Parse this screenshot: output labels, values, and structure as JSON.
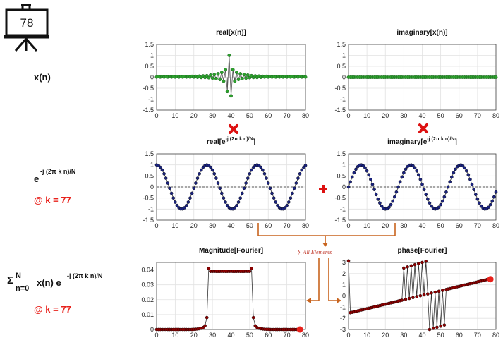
{
  "slide_number": "78",
  "labels": {
    "xn": "x(n)",
    "exp_base": "e",
    "exp_sup": "-j (2π k n)/N",
    "k_label": "@ k = 77",
    "sum_sigma": "Σ",
    "sum_upper": "N",
    "sum_lower": "n=0",
    "sum_body": "x(n) e",
    "sum_sup": "-j (2π k n)/N",
    "k_label2": "@ k = 77",
    "all_elements": "∑ All Elements"
  },
  "colors": {
    "green": "#2ca02c",
    "navy": "#1a237e",
    "darkred": "#8b0000",
    "orange": "#c8641e",
    "red": "#e8211b",
    "stem": "#555555"
  },
  "chart_data": [
    {
      "id": "real-xn",
      "type": "scatter",
      "title": "real[x(n)]",
      "style": "stem",
      "xlim": [
        0,
        80
      ],
      "ylim": [
        -1.5,
        1.5
      ],
      "xticks": [
        0,
        10,
        20,
        30,
        40,
        50,
        60,
        70,
        80
      ],
      "yticks": [
        1.5,
        1,
        0.5,
        0,
        -0.5,
        -1,
        -1.5
      ],
      "grid": true,
      "x": [
        0,
        1,
        2,
        3,
        4,
        5,
        6,
        7,
        8,
        9,
        10,
        11,
        12,
        13,
        14,
        15,
        16,
        17,
        18,
        19,
        20,
        21,
        22,
        23,
        24,
        25,
        26,
        27,
        28,
        29,
        30,
        31,
        32,
        33,
        34,
        35,
        36,
        37,
        38,
        39,
        40,
        41,
        42,
        43,
        44,
        45,
        46,
        47,
        48,
        49,
        50,
        51,
        52,
        53,
        54,
        55,
        56,
        57,
        58,
        59,
        60,
        61,
        62,
        63,
        64,
        65,
        66,
        67,
        68,
        69,
        70,
        71,
        72,
        73,
        74,
        75,
        76,
        77,
        78,
        79,
        80
      ],
      "y": [
        0.01,
        0.03,
        0.01,
        0.03,
        0.01,
        0.03,
        0.01,
        0.03,
        0.01,
        0.03,
        0.01,
        0.03,
        0.01,
        0.03,
        0.01,
        0.03,
        0.01,
        0.03,
        0.01,
        0.04,
        0.01,
        0.04,
        0.0,
        0.05,
        -0.01,
        0.06,
        -0.01,
        0.07,
        -0.02,
        0.1,
        -0.04,
        0.12,
        -0.06,
        0.16,
        -0.1,
        0.22,
        -0.18,
        0.35,
        -0.65,
        1.0,
        -0.85,
        0.35,
        -0.18,
        0.22,
        -0.1,
        0.16,
        -0.06,
        0.12,
        -0.04,
        0.1,
        -0.02,
        0.07,
        -0.01,
        0.06,
        -0.01,
        0.05,
        0.0,
        0.04,
        0.01,
        0.04,
        0.01,
        0.03,
        0.01,
        0.03,
        0.01,
        0.03,
        0.01,
        0.03,
        0.01,
        0.03,
        0.01,
        0.03,
        0.01,
        0.03,
        0.01,
        0.03,
        0.01,
        0.03,
        0.01,
        0.03,
        0.01
      ]
    },
    {
      "id": "imag-xn",
      "type": "scatter",
      "title": "imaginary[x(n)]",
      "style": "stem",
      "xlim": [
        0,
        80
      ],
      "ylim": [
        -1.5,
        1.5
      ],
      "xticks": [
        0,
        10,
        20,
        30,
        40,
        50,
        60,
        70,
        80
      ],
      "yticks": [
        1.5,
        1,
        0.5,
        0,
        -0.5,
        -1,
        -1.5
      ],
      "grid": true,
      "x": [
        0,
        1,
        2,
        3,
        4,
        5,
        6,
        7,
        8,
        9,
        10,
        11,
        12,
        13,
        14,
        15,
        16,
        17,
        18,
        19,
        20,
        21,
        22,
        23,
        24,
        25,
        26,
        27,
        28,
        29,
        30,
        31,
        32,
        33,
        34,
        35,
        36,
        37,
        38,
        39,
        40,
        41,
        42,
        43,
        44,
        45,
        46,
        47,
        48,
        49,
        50,
        51,
        52,
        53,
        54,
        55,
        56,
        57,
        58,
        59,
        60,
        61,
        62,
        63,
        64,
        65,
        66,
        67,
        68,
        69,
        70,
        71,
        72,
        73,
        74,
        75,
        76,
        77,
        78,
        79,
        80
      ],
      "y": [
        0,
        0,
        0,
        0,
        0,
        0,
        0,
        0,
        0,
        0,
        0,
        0,
        0,
        0,
        0,
        0,
        0,
        0,
        0,
        0,
        0,
        0,
        0,
        0,
        0,
        0,
        0,
        0,
        0,
        0,
        0,
        0,
        0,
        0,
        0,
        0,
        0,
        0,
        0,
        0,
        0,
        0,
        0,
        0,
        0,
        0,
        0,
        0,
        0,
        0,
        0,
        0,
        0,
        0,
        0,
        0,
        0,
        0,
        0,
        0,
        0,
        0,
        0,
        0,
        0,
        0,
        0,
        0,
        0,
        0,
        0,
        0,
        0,
        0,
        0,
        0,
        0,
        0,
        0,
        0,
        0
      ]
    },
    {
      "id": "real-exp",
      "type": "line",
      "title_base": "real[e",
      "title_sup": "-j (2π k n)/N",
      "title_end": "]",
      "style": "dots",
      "xlim": [
        0,
        80
      ],
      "ylim": [
        -1.5,
        1.5
      ],
      "xticks": [
        0,
        10,
        20,
        30,
        40,
        50,
        60,
        70,
        80
      ],
      "yticks": [
        1.5,
        1,
        0.5,
        0,
        -0.5,
        -1,
        -1.5
      ],
      "grid": true,
      "zero_line": "dashed",
      "x": [
        0,
        1,
        2,
        3,
        4,
        5,
        6,
        7,
        8,
        9,
        10,
        11,
        12,
        13,
        14,
        15,
        16,
        17,
        18,
        19,
        20,
        21,
        22,
        23,
        24,
        25,
        26,
        27,
        28,
        29,
        30,
        31,
        32,
        33,
        34,
        35,
        36,
        37,
        38,
        39,
        40,
        41,
        42,
        43,
        44,
        45,
        46,
        47,
        48,
        49,
        50,
        51,
        52,
        53,
        54,
        55,
        56,
        57,
        58,
        59,
        60,
        61,
        62,
        63,
        64,
        65,
        66,
        67,
        68,
        69,
        70,
        71,
        72,
        73,
        74,
        75,
        76,
        77,
        78,
        79,
        80
      ],
      "y": [
        1,
        0.973,
        0.893,
        0.766,
        0.597,
        0.396,
        0.174,
        -0.058,
        -0.287,
        -0.5,
        -0.686,
        -0.835,
        -0.94,
        -0.993,
        -0.993,
        -0.94,
        -0.835,
        -0.686,
        -0.5,
        -0.287,
        -0.058,
        0.174,
        0.396,
        0.597,
        0.766,
        0.893,
        0.973,
        1,
        0.973,
        0.893,
        0.766,
        0.597,
        0.396,
        0.174,
        -0.058,
        -0.287,
        -0.5,
        -0.686,
        -0.835,
        -0.94,
        -0.993,
        -0.993,
        -0.94,
        -0.835,
        -0.686,
        -0.5,
        -0.287,
        -0.058,
        0.174,
        0.396,
        0.597,
        0.766,
        0.893,
        0.973,
        1,
        0.973,
        0.893,
        0.766,
        0.597,
        0.396,
        0.174,
        -0.058,
        -0.287,
        -0.5,
        -0.686,
        -0.835,
        -0.94,
        -0.993,
        -0.993,
        -0.94,
        -0.835,
        -0.686,
        -0.5,
        -0.287,
        -0.058,
        0.174,
        0.396,
        0.597,
        0.766,
        0.893,
        0.973
      ]
    },
    {
      "id": "imag-exp",
      "type": "line",
      "title_base": "imaginary[e",
      "title_sup": "-j (2π k n)/N",
      "title_end": "]",
      "style": "dots",
      "xlim": [
        0,
        80
      ],
      "ylim": [
        -1.5,
        1.5
      ],
      "xticks": [
        0,
        10,
        20,
        30,
        40,
        50,
        60,
        70,
        80
      ],
      "yticks": [
        1.5,
        1,
        0.5,
        0,
        -0.5,
        -1,
        -1.5
      ],
      "grid": true,
      "zero_line": "dashed",
      "x": [
        0,
        1,
        2,
        3,
        4,
        5,
        6,
        7,
        8,
        9,
        10,
        11,
        12,
        13,
        14,
        15,
        16,
        17,
        18,
        19,
        20,
        21,
        22,
        23,
        24,
        25,
        26,
        27,
        28,
        29,
        30,
        31,
        32,
        33,
        34,
        35,
        36,
        37,
        38,
        39,
        40,
        41,
        42,
        43,
        44,
        45,
        46,
        47,
        48,
        49,
        50,
        51,
        52,
        53,
        54,
        55,
        56,
        57,
        58,
        59,
        60,
        61,
        62,
        63,
        64,
        65,
        66,
        67,
        68,
        69,
        70,
        71,
        72,
        73,
        74,
        75,
        76,
        77,
        78,
        79,
        80
      ],
      "y": [
        0,
        0.23,
        0.448,
        0.643,
        0.802,
        0.918,
        0.985,
        0.998,
        0.958,
        0.866,
        0.727,
        0.551,
        0.342,
        0.116,
        -0.116,
        -0.342,
        -0.551,
        -0.727,
        -0.866,
        -0.958,
        -0.998,
        -0.985,
        -0.918,
        -0.802,
        -0.643,
        -0.448,
        -0.23,
        0,
        0.23,
        0.448,
        0.643,
        0.802,
        0.918,
        0.985,
        0.998,
        0.958,
        0.866,
        0.727,
        0.551,
        0.342,
        0.116,
        -0.116,
        -0.342,
        -0.551,
        -0.727,
        -0.866,
        -0.958,
        -0.998,
        -0.985,
        -0.918,
        -0.802,
        -0.643,
        -0.448,
        -0.23,
        0,
        0.23,
        0.448,
        0.643,
        0.802,
        0.918,
        0.985,
        0.998,
        0.958,
        0.866,
        0.727,
        0.551,
        0.342,
        0.116,
        -0.116,
        -0.342,
        -0.551,
        -0.727,
        -0.866,
        -0.958,
        -0.998,
        -0.985,
        -0.918,
        -0.802,
        -0.643,
        -0.448,
        -0.23
      ]
    },
    {
      "id": "magnitude",
      "type": "line",
      "title": "Magnitude[Fourier]",
      "style": "dots",
      "xlim": [
        0,
        80
      ],
      "ylim": [
        0,
        0.045
      ],
      "xticks": [
        0,
        10,
        20,
        30,
        40,
        50,
        60,
        70,
        80
      ],
      "yticks": [
        0.04,
        0.03,
        0.02,
        0.01,
        0
      ],
      "grid": true,
      "highlight": {
        "x": 77,
        "y": 0
      },
      "x": [
        0,
        1,
        2,
        3,
        4,
        5,
        6,
        7,
        8,
        9,
        10,
        11,
        12,
        13,
        14,
        15,
        16,
        17,
        18,
        19,
        20,
        21,
        22,
        23,
        24,
        25,
        26,
        27,
        28,
        29,
        30,
        31,
        32,
        33,
        34,
        35,
        36,
        37,
        38,
        39,
        40,
        41,
        42,
        43,
        44,
        45,
        46,
        47,
        48,
        49,
        50,
        51,
        52,
        53,
        54,
        55,
        56,
        57,
        58,
        59,
        60,
        61,
        62,
        63,
        64,
        65,
        66,
        67,
        68,
        69,
        70,
        71,
        72,
        73,
        74,
        75,
        76,
        77
      ],
      "y": [
        0,
        0,
        0,
        0,
        0,
        0,
        0,
        0,
        0,
        0,
        0,
        0,
        0,
        0,
        0,
        0,
        0,
        0,
        0,
        0,
        0.0001,
        0.0002,
        0.0003,
        0.0005,
        0.0008,
        0.0013,
        0.0025,
        0.008,
        0.041,
        0.039,
        0.039,
        0.039,
        0.039,
        0.039,
        0.039,
        0.039,
        0.039,
        0.039,
        0.039,
        0.039,
        0.039,
        0.039,
        0.039,
        0.039,
        0.039,
        0.039,
        0.039,
        0.039,
        0.039,
        0.039,
        0.039,
        0.041,
        0.008,
        0.0025,
        0.0013,
        0.0008,
        0.0005,
        0.0003,
        0.0002,
        0.0001,
        0.0001,
        0,
        0,
        0,
        0,
        0,
        0,
        0,
        0,
        0,
        0,
        0,
        0,
        0,
        0,
        0,
        0,
        0
      ]
    },
    {
      "id": "phase",
      "type": "line",
      "title": "phase[Fourier]",
      "style": "dots",
      "xlim": [
        0,
        80
      ],
      "ylim": [
        -3,
        3
      ],
      "xticks": [
        0,
        10,
        20,
        30,
        40,
        50,
        60,
        70,
        80
      ],
      "yticks": [
        3,
        2,
        1,
        0,
        -1,
        -2,
        -3
      ],
      "grid": true,
      "highlight": {
        "x": 77,
        "y": 1.5
      },
      "x": [
        0,
        1,
        2,
        3,
        4,
        5,
        6,
        7,
        8,
        9,
        10,
        11,
        12,
        13,
        14,
        15,
        16,
        17,
        18,
        19,
        20,
        21,
        22,
        23,
        24,
        25,
        26,
        27,
        28,
        29,
        30,
        31,
        32,
        33,
        34,
        35,
        36,
        37,
        38,
        39,
        40,
        41,
        42,
        43,
        44,
        45,
        46,
        47,
        48,
        49,
        50,
        51,
        52,
        53,
        54,
        55,
        56,
        57,
        58,
        59,
        60,
        61,
        62,
        63,
        64,
        65,
        66,
        67,
        68,
        69,
        70,
        71,
        72,
        73,
        74,
        75,
        76,
        77
      ],
      "y": [
        3.14,
        -1.5,
        -1.46,
        -1.42,
        -1.38,
        -1.34,
        -1.3,
        -1.26,
        -1.22,
        -1.18,
        -1.14,
        -1.1,
        -1.06,
        -1.02,
        -0.98,
        -0.94,
        -0.9,
        -0.86,
        -0.82,
        -0.78,
        -0.74,
        -0.7,
        -0.66,
        -0.62,
        -0.58,
        -0.54,
        -0.5,
        -0.46,
        -0.42,
        -0.38,
        2.5,
        -0.3,
        2.6,
        -0.22,
        2.7,
        -0.14,
        2.8,
        -0.06,
        2.9,
        0.02,
        3.0,
        0.1,
        3.1,
        0.18,
        -3.0,
        0.26,
        -2.9,
        0.34,
        -2.8,
        0.42,
        -2.7,
        0.5,
        -2.6,
        0.58,
        0.62,
        0.66,
        0.7,
        0.74,
        0.78,
        0.82,
        0.86,
        0.9,
        0.94,
        0.98,
        1.02,
        1.06,
        1.1,
        1.14,
        1.18,
        1.22,
        1.26,
        1.3,
        1.34,
        1.38,
        1.42,
        1.46,
        1.5,
        1.5
      ]
    }
  ]
}
